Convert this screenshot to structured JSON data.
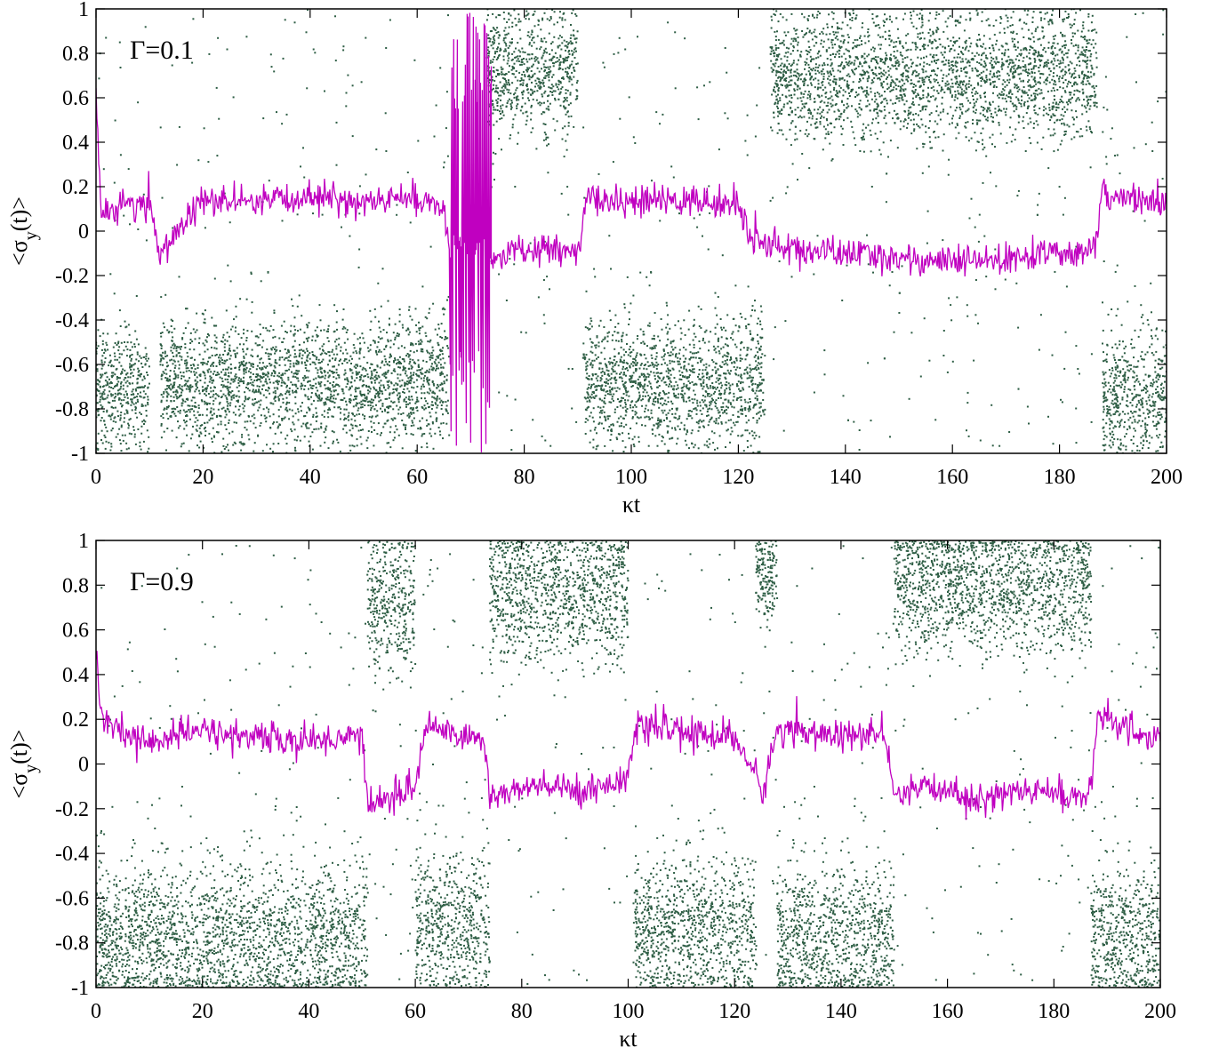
{
  "colors": {
    "scatter": "#2e5e45",
    "line": "#c000c0",
    "axis": "#000000",
    "background": "#ffffff"
  },
  "chart_data": [
    {
      "type": "scatter",
      "annotation": "Γ=0.1",
      "xlabel": "κt",
      "ylabel": "<σ_y(t)>",
      "xlim": [
        0,
        200
      ],
      "ylim": [
        -1,
        1
      ],
      "xticks": [
        0,
        20,
        40,
        60,
        80,
        100,
        120,
        140,
        160,
        180,
        200
      ],
      "yticks": [
        -1,
        -0.8,
        -0.6,
        -0.4,
        -0.2,
        0,
        0.2,
        0.4,
        0.6,
        0.8,
        1
      ],
      "xtick_labels": [
        "0",
        "20",
        "40",
        "60",
        "80",
        "100",
        "120",
        "140",
        "160",
        "180",
        "200"
      ],
      "ytick_labels": [
        "-1",
        "-0.8",
        "-0.6",
        "-0.4",
        "-0.2",
        "0",
        "0.2",
        "0.4",
        "0.6",
        "0.8",
        "1"
      ],
      "grid": false,
      "series": [
        {
          "kind": "scatter-band",
          "color": "#2e5e45",
          "description_segments": [
            {
              "x": [
                0,
                10
              ],
              "center": -0.72,
              "spread": 0.26
            },
            {
              "x": [
                12,
                66
              ],
              "center": -0.68,
              "spread": 0.25
            },
            {
              "x": [
                73,
                90
              ],
              "center": 0.72,
              "spread": 0.24
            },
            {
              "x": [
                91,
                125
              ],
              "center": -0.68,
              "spread": 0.26
            },
            {
              "x": [
                126,
                187
              ],
              "center": 0.7,
              "spread": 0.26
            },
            {
              "x": [
                188,
                200
              ],
              "center": -0.72,
              "spread": 0.26
            }
          ]
        },
        {
          "kind": "line",
          "color": "#c000c0",
          "x": [
            0,
            1,
            5,
            10,
            12,
            20,
            30,
            40,
            50,
            60,
            64,
            66,
            74,
            78,
            85,
            90,
            92,
            100,
            110,
            120,
            122,
            125,
            130,
            140,
            150,
            160,
            170,
            180,
            187,
            188,
            190,
            195,
            200
          ],
          "y": [
            0.65,
            0.05,
            0.13,
            0.12,
            -0.1,
            0.14,
            0.12,
            0.16,
            0.13,
            0.15,
            0.12,
            -0.05,
            -0.12,
            -0.1,
            -0.08,
            -0.1,
            0.15,
            0.13,
            0.14,
            0.12,
            -0.02,
            -0.05,
            -0.08,
            -0.1,
            -0.12,
            -0.14,
            -0.13,
            -0.1,
            -0.05,
            0.22,
            0.14,
            0.15,
            0.12
          ]
        }
      ]
    },
    {
      "type": "scatter",
      "annotation": "Γ=0.9",
      "xlabel": "κt",
      "ylabel": "<σ_y(t)>",
      "xlim": [
        0,
        200
      ],
      "ylim": [
        -1,
        1
      ],
      "xticks": [
        0,
        20,
        40,
        60,
        80,
        100,
        120,
        140,
        160,
        180,
        200
      ],
      "yticks": [
        -1,
        -0.8,
        -0.6,
        -0.4,
        -0.2,
        0,
        0.2,
        0.4,
        0.6,
        0.8,
        1
      ],
      "xtick_labels": [
        "0",
        "20",
        "40",
        "60",
        "80",
        "100",
        "120",
        "140",
        "160",
        "180",
        "200"
      ],
      "ytick_labels": [
        "-1",
        "-0.8",
        "-0.6",
        "-0.4",
        "-0.2",
        "0",
        "0.2",
        "0.4",
        "0.6",
        "0.8",
        "1"
      ],
      "grid": false,
      "series": [
        {
          "kind": "scatter-band",
          "color": "#2e5e45",
          "description_segments": [
            {
              "x": [
                0,
                51
              ],
              "center": -0.78,
              "spread": 0.3
            },
            {
              "x": [
                51,
                60
              ],
              "center": 0.72,
              "spread": 0.3
            },
            {
              "x": [
                60,
                74
              ],
              "center": -0.72,
              "spread": 0.3
            },
            {
              "x": [
                74,
                100
              ],
              "center": 0.78,
              "spread": 0.28
            },
            {
              "x": [
                101,
                124
              ],
              "center": -0.75,
              "spread": 0.3
            },
            {
              "x": [
                124,
                128
              ],
              "center": 0.85,
              "spread": 0.2
            },
            {
              "x": [
                128,
                150
              ],
              "center": -0.78,
              "spread": 0.3
            },
            {
              "x": [
                150,
                187
              ],
              "center": 0.8,
              "spread": 0.28
            },
            {
              "x": [
                187,
                200
              ],
              "center": -0.78,
              "spread": 0.3
            }
          ]
        },
        {
          "kind": "line",
          "color": "#c000c0",
          "x": [
            0,
            1,
            5,
            10,
            20,
            30,
            40,
            50,
            51,
            52,
            55,
            58,
            60,
            62,
            65,
            70,
            73,
            74,
            78,
            85,
            90,
            95,
            100,
            102,
            110,
            120,
            124,
            125,
            128,
            130,
            140,
            148,
            150,
            155,
            160,
            165,
            170,
            180,
            187,
            188,
            192,
            200
          ],
          "y": [
            0.55,
            0.2,
            0.13,
            0.1,
            0.15,
            0.12,
            0.1,
            0.13,
            -0.15,
            -0.18,
            -0.15,
            -0.12,
            -0.1,
            0.18,
            0.15,
            0.12,
            0.1,
            -0.15,
            -0.12,
            -0.1,
            -0.12,
            -0.1,
            -0.05,
            0.18,
            0.14,
            0.12,
            -0.05,
            -0.15,
            0.15,
            0.16,
            0.12,
            0.14,
            -0.15,
            -0.12,
            -0.1,
            -0.18,
            -0.12,
            -0.13,
            -0.15,
            0.2,
            0.18,
            0.1
          ]
        }
      ]
    }
  ]
}
